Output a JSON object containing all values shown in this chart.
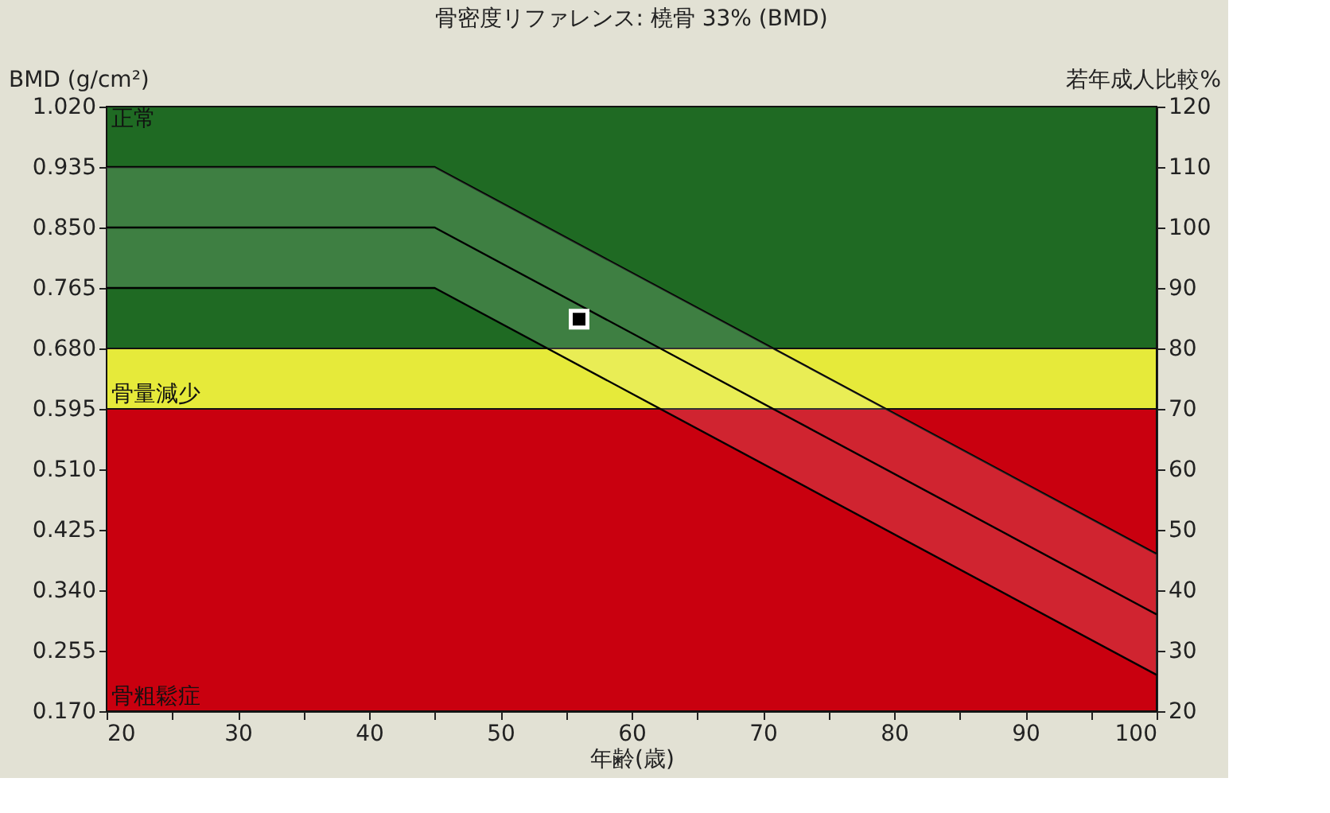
{
  "chart_data": {
    "type": "line",
    "title": "骨密度リファレンス: 橈骨 33% (BMD)",
    "xlabel": "年齢(歳)",
    "ylabel": "BMD (g/cm²)",
    "y2label": "若年成人比較%",
    "xlim": [
      20,
      100
    ],
    "xticks": [
      20,
      {
        "value": 25,
        "label": null
      },
      30,
      {
        "value": 35,
        "label": null
      },
      40,
      {
        "value": 45,
        "label": null
      },
      50,
      {
        "value": 55,
        "label": null
      },
      60,
      {
        "value": 65,
        "label": null
      },
      70,
      {
        "value": 75,
        "label": null
      },
      80,
      {
        "value": 85,
        "label": null
      },
      90,
      {
        "value": 95,
        "label": null
      },
      100
    ],
    "ylim": [
      0.17,
      1.02
    ],
    "yticks": [
      {
        "value": 0.17,
        "label": "0.170"
      },
      0.255,
      {
        "value": 0.34,
        "label": "0.340"
      },
      0.425,
      {
        "value": 0.51,
        "label": "0.510"
      },
      0.595,
      {
        "value": 0.68,
        "label": "0.680"
      },
      0.765,
      {
        "value": 0.85,
        "label": "0.850"
      },
      0.935,
      {
        "value": 1.02,
        "label": "1.020"
      }
    ],
    "y2lim": [
      20,
      120
    ],
    "y2ticks": [
      20,
      30,
      40,
      50,
      60,
      70,
      80,
      90,
      100,
      110,
      120
    ],
    "series": [
      {
        "color": "#000000",
        "x": [
          20,
          45,
          100
        ],
        "values": [
          0.935,
          0.935,
          0.391
        ]
      },
      {
        "color": "#000000",
        "x": [
          20,
          45,
          100
        ],
        "values": [
          0.85,
          0.85,
          0.306
        ],
        "lower": [
          0.765,
          0.765,
          0.221
        ],
        "upper": [
          0.935,
          0.935,
          0.391
        ]
      },
      {
        "color": "#000000",
        "x": [
          20,
          45,
          100
        ],
        "values": [
          0.765,
          0.765,
          0.221
        ]
      },
      {
        "type": "scatter",
        "color": "#000000",
        "x": [
          56
        ],
        "values": [
          0.721
        ],
        "marker": "square"
      }
    ],
    "bands": [
      {
        "axis": "y",
        "from": 0.68,
        "to": 1.02,
        "label": "正常",
        "color": "#1f6a23"
      },
      {
        "axis": "y",
        "from": 0.595,
        "to": 0.68,
        "label": "骨量減少",
        "color": "#e6ea3a"
      },
      {
        "axis": "y",
        "from": 0.17,
        "to": 0.595,
        "label": "骨粗鬆症",
        "color": "#c9000f"
      }
    ]
  }
}
